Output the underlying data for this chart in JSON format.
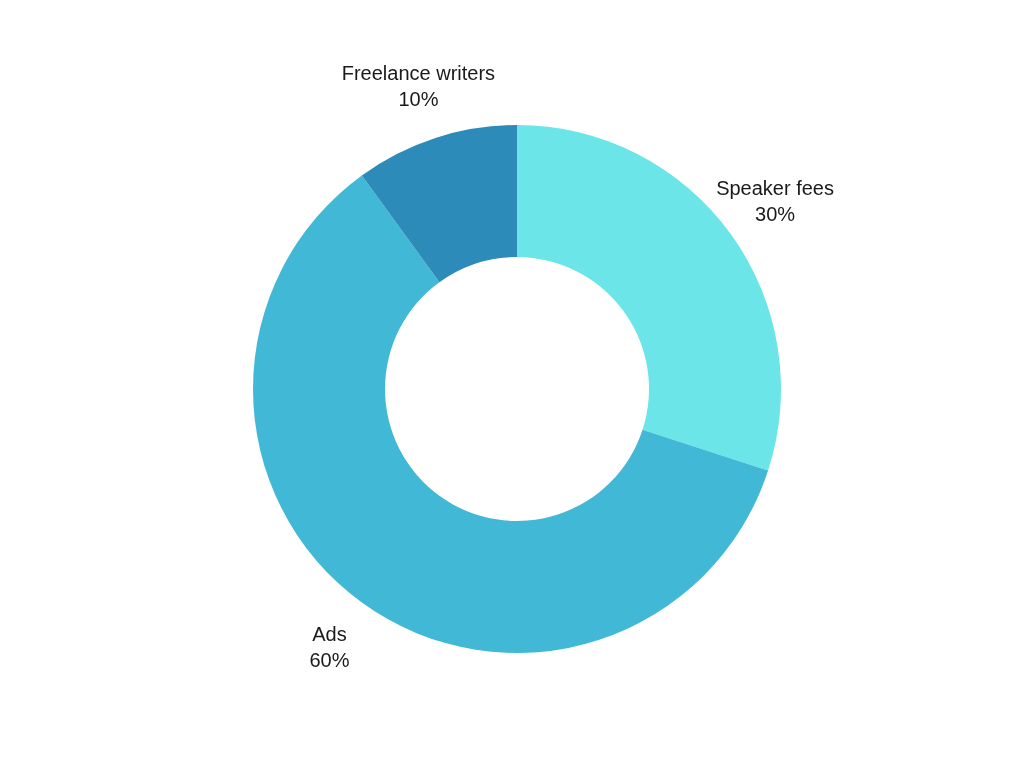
{
  "chart_data": {
    "type": "donut",
    "categories": [
      "Speaker fees",
      "Ads",
      "Freelance writers"
    ],
    "values": [
      30,
      60,
      10
    ],
    "value_labels": [
      "30%",
      "60%",
      "10%"
    ],
    "colors": [
      "#6ce5e8",
      "#41b8d5",
      "#2d8bba"
    ]
  }
}
